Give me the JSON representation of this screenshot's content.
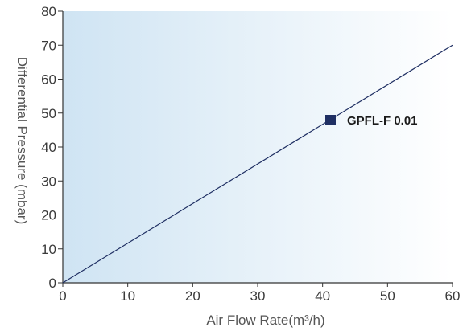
{
  "chart_data": {
    "type": "line",
    "title": "",
    "xlabel": "Air Flow Rate(m³/h)",
    "ylabel": "Differential Pressure (mbar)",
    "xlim": [
      0,
      60
    ],
    "ylim": [
      0,
      80
    ],
    "x_ticks": [
      "0",
      "10",
      "20",
      "30",
      "40",
      "50",
      "60"
    ],
    "y_ticks": [
      "0",
      "10",
      "20",
      "30",
      "40",
      "50",
      "60",
      "70",
      "80"
    ],
    "grid": false,
    "legend_position": "inside-right",
    "series": [
      {
        "name": "GPFL-F 0.01",
        "color": "#1f2f63",
        "x": [
          0,
          60
        ],
        "y": [
          0,
          70
        ]
      }
    ],
    "background_gradient": [
      "#cfe4f3",
      "#ffffff"
    ]
  }
}
